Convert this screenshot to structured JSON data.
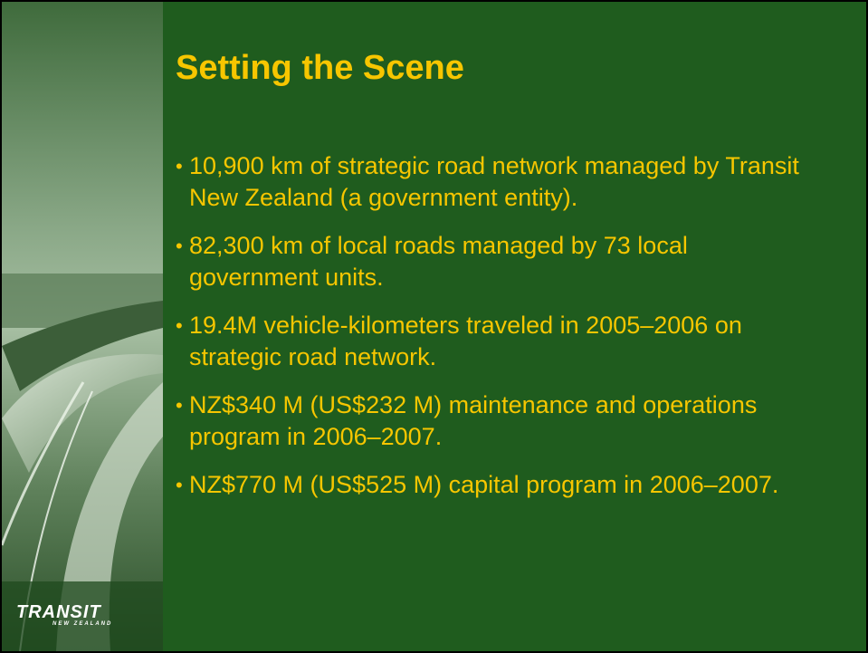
{
  "slide": {
    "title": "Setting the Scene",
    "bullets": [
      "10,900 km of strategic road network managed by Transit New Zealand (a government entity).",
      "82,300 km of local roads managed by 73 local government units.",
      "19.4M vehicle-kilometers traveled in 2005–2006 on strategic road network.",
      "NZ$340 M (US$232 M) maintenance and operations program in 2006–2007.",
      "NZ$770 M (US$525 M) capital program in 2006–2007."
    ],
    "logo": {
      "name": "TRANSIT",
      "tagline": "NEW ZEALAND"
    }
  }
}
